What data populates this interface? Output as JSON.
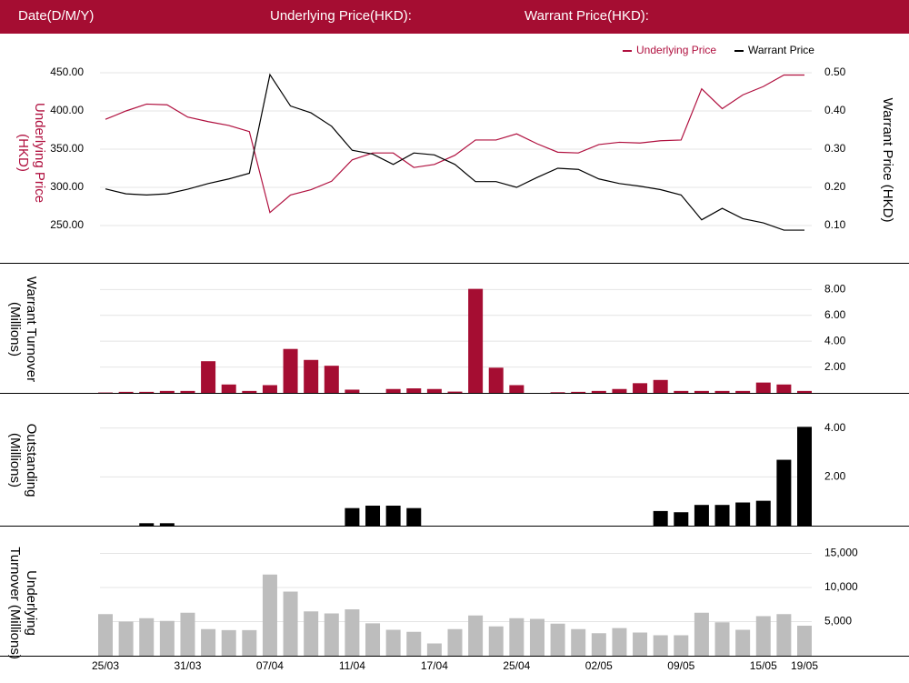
{
  "header": {
    "date_label": "Date(D/M/Y)",
    "underlying_label": "Underlying Price(HKD):",
    "warrant_label": "Warrant Price(HKD):"
  },
  "colors": {
    "brand": "#a50d32",
    "underlying": "#b0103f",
    "warrant": "#000000",
    "outstanding": "#000000",
    "underlying_turnover": "#bdbdbd"
  },
  "chart_data": [
    {
      "type": "line",
      "title": "",
      "legend": [
        {
          "name": "Underlying Price",
          "color": "#b0103f"
        },
        {
          "name": "Warrant Price",
          "color": "#000000"
        }
      ],
      "legend_position": "top-right",
      "ylabel_left": "Underlying Price (HKD)",
      "ylabel_right": "Warrant Price (HKD)",
      "yticks_left": [
        "450.00",
        "400.00",
        "350.00",
        "300.00",
        "250.00"
      ],
      "yticks_right": [
        "0.50",
        "0.40",
        "0.30",
        "0.20",
        "0.10"
      ],
      "ylim_left": [
        250,
        450
      ],
      "ylim_right": [
        0.1,
        0.5
      ],
      "grid": true,
      "series": [
        {
          "name": "Underlying Price",
          "axis": "left",
          "values": [
            389,
            400,
            409,
            408,
            392,
            386,
            381,
            373,
            267,
            290,
            297,
            308,
            336,
            345,
            345,
            326,
            330,
            342,
            362,
            362,
            370,
            357,
            346,
            345,
            356,
            359,
            358,
            361,
            362,
            429,
            403,
            421,
            432,
            447,
            447
          ]
        },
        {
          "name": "Warrant Price",
          "axis": "right",
          "values": [
            0.196,
            0.183,
            0.18,
            0.183,
            0.195,
            0.21,
            0.222,
            0.237,
            0.495,
            0.413,
            0.395,
            0.36,
            0.297,
            0.287,
            0.26,
            0.29,
            0.285,
            0.26,
            0.215,
            0.215,
            0.2,
            0.226,
            0.25,
            0.247,
            0.222,
            0.21,
            0.203,
            0.194,
            0.18,
            0.115,
            0.145,
            0.118,
            0.107,
            0.088,
            0.088
          ]
        }
      ]
    },
    {
      "type": "bar",
      "ylabel": "Warrant Turnover (Millions)",
      "yticks": [
        "8.00",
        "6.00",
        "4.00",
        "2.00"
      ],
      "ylim": [
        0,
        8.2
      ],
      "grid": true,
      "series": [
        {
          "name": "",
          "color": "#a50d32",
          "values": [
            0.03,
            0.08,
            0.08,
            0.15,
            0.15,
            2.45,
            0.65,
            0.15,
            0.6,
            3.4,
            2.55,
            2.1,
            0.25,
            0,
            0.3,
            0.35,
            0.3,
            0.1,
            8.05,
            1.95,
            0.6,
            0,
            0.05,
            0.08,
            0.15,
            0.3,
            0.75,
            1.0,
            0.15,
            0.15,
            0.15,
            0.15,
            0.8,
            0.65,
            0.15
          ]
        }
      ]
    },
    {
      "type": "bar",
      "ylabel": "Outstanding (Millions)",
      "yticks": [
        "4.00",
        "2.00"
      ],
      "ylim": [
        0,
        4.1
      ],
      "grid": true,
      "series": [
        {
          "name": "",
          "color": "#000000",
          "values": [
            0,
            0,
            0.1,
            0.1,
            0,
            0,
            0,
            0,
            0,
            0,
            0,
            0,
            0.72,
            0.82,
            0.82,
            0.72,
            0,
            0,
            0,
            0,
            0,
            0,
            0,
            0,
            0,
            0,
            0,
            0.6,
            0.55,
            0.85,
            0.85,
            0.95,
            1.02,
            2.7,
            4.05
          ]
        }
      ]
    },
    {
      "type": "bar",
      "ylabel": "Underlying Turnover (Millions)",
      "yticks": [
        "15,000",
        "10,000",
        "5,000"
      ],
      "ylim": [
        0,
        16000
      ],
      "grid": true,
      "series": [
        {
          "name": "",
          "color": "#bdbdbd",
          "values": [
            6100,
            5000,
            5500,
            5100,
            6300,
            3900,
            3750,
            3750,
            11900,
            9400,
            6500,
            6200,
            6800,
            4750,
            3800,
            3500,
            1800,
            3900,
            5900,
            4300,
            5500,
            5400,
            4700,
            3900,
            3300,
            4050,
            3400,
            3000,
            3000,
            6300,
            4900,
            3800,
            5800,
            6100,
            4400
          ]
        }
      ]
    }
  ],
  "x_axis": {
    "tick_labels": [
      "25/03",
      "31/03",
      "07/04",
      "11/04",
      "17/04",
      "25/04",
      "02/05",
      "09/05",
      "15/05",
      "19/05"
    ],
    "tick_indices": [
      0,
      4,
      8,
      12,
      16,
      20,
      24,
      28,
      32,
      34
    ]
  }
}
